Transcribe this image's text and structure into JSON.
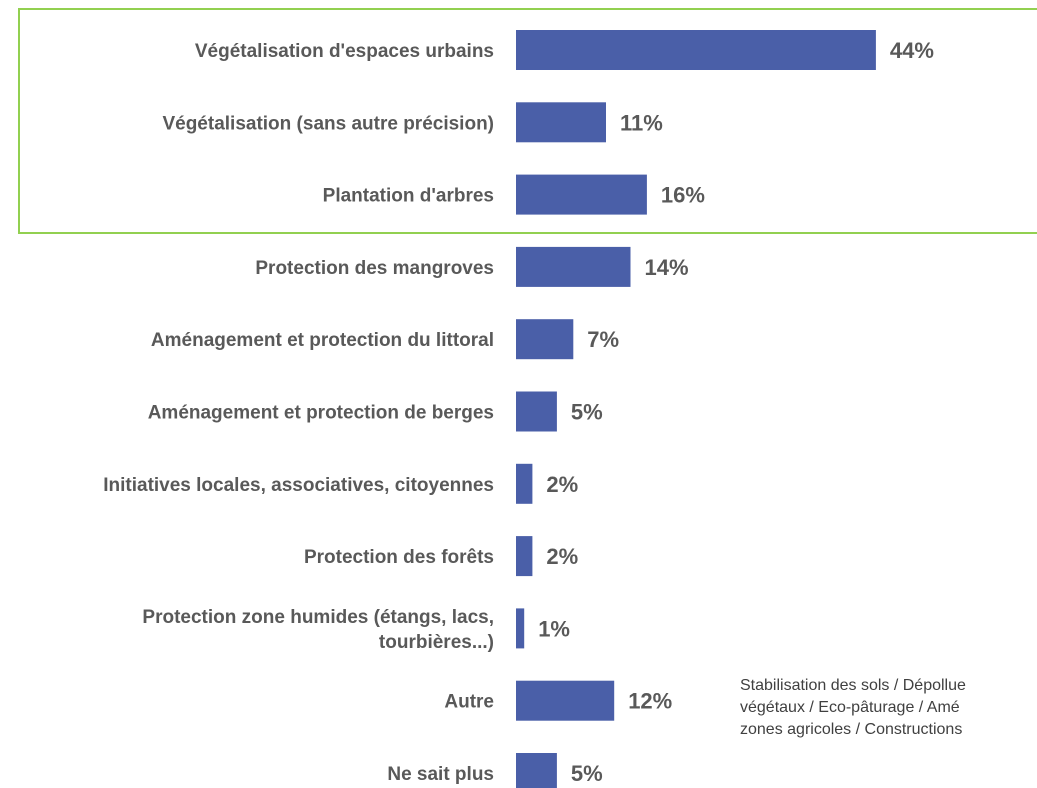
{
  "chart_data": {
    "type": "bar",
    "orientation": "horizontal",
    "categories": [
      [
        "Végétalisation d'espaces urbains"
      ],
      [
        "Végétalisation (sans autre précision)"
      ],
      [
        "Plantation d'arbres"
      ],
      [
        "Protection des mangroves"
      ],
      [
        "Aménagement et protection du littoral"
      ],
      [
        "Aménagement et protection de berges"
      ],
      [
        "Initiatives locales, associatives, citoyennes"
      ],
      [
        "Protection des forêts"
      ],
      [
        "Protection zone humides (étangs, lacs,",
        "tourbières...)"
      ],
      [
        "Autre"
      ],
      [
        "Ne sait plus"
      ]
    ],
    "values": [
      44,
      11,
      16,
      14,
      7,
      5,
      2,
      2,
      1,
      12,
      5
    ],
    "value_labels": [
      "44%",
      "11%",
      "16%",
      "14%",
      "7%",
      "5%",
      "2%",
      "2%",
      "1%",
      "12%",
      "5%"
    ],
    "unit": "%",
    "highlight_group": [
      0,
      1,
      2
    ],
    "annotation": [
      "Stabilisation des sols / Dépollue",
      "végétaux / Eco-pâturage / Amé",
      "zones agricoles / Constructions"
    ],
    "grid": false,
    "legend": "none"
  },
  "colors": {
    "bar": "#4a5fa8",
    "highlight_border": "#92d050",
    "label_text": "#595959",
    "note_text": "#404040"
  }
}
